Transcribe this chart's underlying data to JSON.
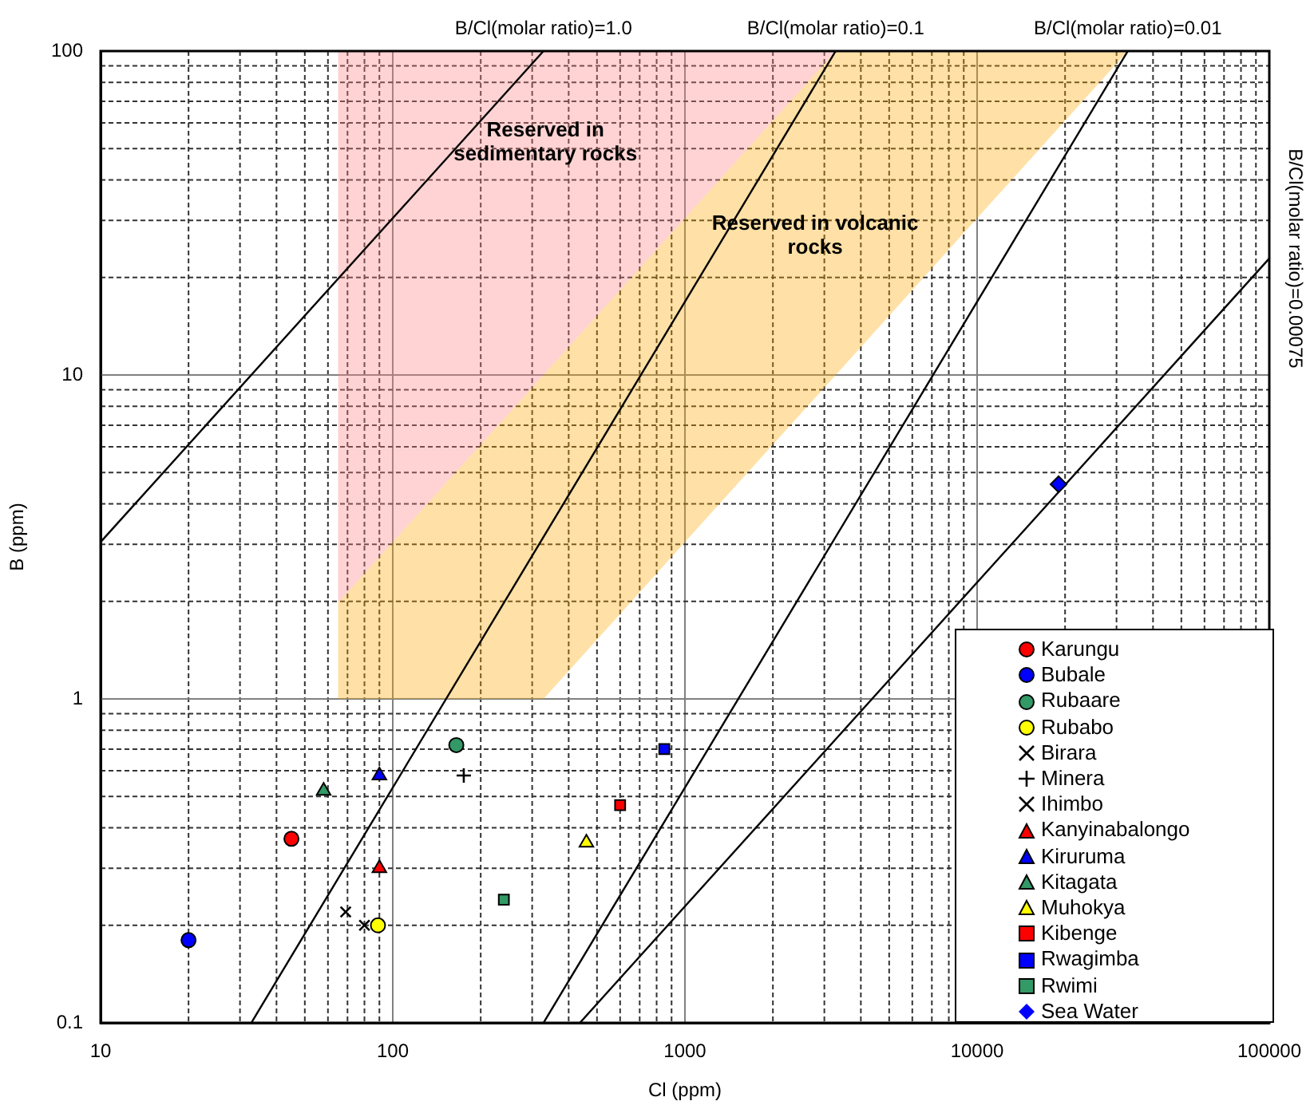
{
  "chart_data": {
    "type": "scatter",
    "xlabel": "Cl (ppm)",
    "ylabel": "B (ppm)",
    "log": "xy",
    "grid": true,
    "legend": "bottom right",
    "xlim": [
      10,
      100000
    ],
    "ylim": [
      0.1,
      100
    ],
    "xticks": [
      10,
      {
        "value": 20,
        "label": null
      },
      {
        "value": 30,
        "label": null
      },
      {
        "value": 40,
        "label": null
      },
      {
        "value": 50,
        "label": null
      },
      {
        "value": 60,
        "label": null
      },
      {
        "value": 70,
        "label": null
      },
      {
        "value": 80,
        "label": null
      },
      {
        "value": 90,
        "label": null
      },
      100,
      {
        "value": 200,
        "label": null
      },
      {
        "value": 300,
        "label": null
      },
      {
        "value": 400,
        "label": null
      },
      {
        "value": 500,
        "label": null
      },
      {
        "value": 600,
        "label": null
      },
      {
        "value": 700,
        "label": null
      },
      {
        "value": 800,
        "label": null
      },
      {
        "value": 900,
        "label": null
      },
      1000,
      {
        "value": 2000,
        "label": null
      },
      {
        "value": 3000,
        "label": null
      },
      {
        "value": 4000,
        "label": null
      },
      {
        "value": 5000,
        "label": null
      },
      {
        "value": 6000,
        "label": null
      },
      {
        "value": 7000,
        "label": null
      },
      {
        "value": 8000,
        "label": null
      },
      {
        "value": 9000,
        "label": null
      },
      10000,
      {
        "value": 20000,
        "label": null
      },
      {
        "value": 30000,
        "label": null
      },
      {
        "value": 40000,
        "label": null
      },
      {
        "value": 50000,
        "label": null
      },
      {
        "value": 60000,
        "label": null
      },
      {
        "value": 70000,
        "label": null
      },
      {
        "value": 80000,
        "label": null
      },
      {
        "value": 90000,
        "label": null
      },
      100000
    ],
    "yticks": [
      0.1,
      {
        "value": 0.2,
        "label": null
      },
      {
        "value": 0.3,
        "label": null
      },
      {
        "value": 0.4,
        "label": null
      },
      {
        "value": 0.5,
        "label": null
      },
      {
        "value": 0.6,
        "label": null
      },
      {
        "value": 0.7,
        "label": null
      },
      {
        "value": 0.8,
        "label": null
      },
      {
        "value": 0.9,
        "label": null
      },
      1,
      {
        "value": 2,
        "label": null
      },
      {
        "value": 3,
        "label": null
      },
      {
        "value": 4,
        "label": null
      },
      {
        "value": 5,
        "label": null
      },
      {
        "value": 6,
        "label": null
      },
      {
        "value": 7,
        "label": null
      },
      {
        "value": 8,
        "label": null
      },
      {
        "value": 9,
        "label": null
      },
      10,
      {
        "value": 20,
        "label": null
      },
      {
        "value": 30,
        "label": null
      },
      {
        "value": 40,
        "label": null
      },
      {
        "value": 50,
        "label": null
      },
      {
        "value": 60,
        "label": null
      },
      {
        "value": 70,
        "label": null
      },
      {
        "value": 80,
        "label": null
      },
      {
        "value": 90,
        "label": null
      },
      100
    ],
    "annotations": [
      "Reserved in\nsedimentary rocks",
      "Reserved in volcanic\nrocks"
    ],
    "series": [
      {
        "type": "area",
        "color": "#ff8080",
        "x": [
          65,
          65,
          3280
        ],
        "values": [
          1.98,
          100,
          100
        ]
      },
      {
        "type": "area",
        "color": "#ffa500",
        "x": [
          65,
          65,
          3280,
          32800,
          328
        ],
        "values": [
          1,
          1.98,
          100,
          100,
          1
        ]
      },
      {
        "type": "line",
        "name": "B/Cl(molar ratio)=1.0",
        "color": "#000000",
        "marker": "none",
        "x": [
          10,
          328
        ],
        "values": [
          3.05,
          100
        ]
      },
      {
        "type": "line",
        "name": "B/Cl(molar ratio)=0.1",
        "color": "#000000",
        "marker": "none",
        "x": [
          32.8,
          3280
        ],
        "values": [
          0.1,
          100
        ]
      },
      {
        "type": "line",
        "name": "B/Cl(molar ratio)=0.01",
        "color": "#000000",
        "marker": "none",
        "x": [
          328,
          32800
        ],
        "values": [
          0.1,
          100
        ]
      },
      {
        "type": "line",
        "name": "B/Cl(molar ratio)=0.00075",
        "color": "#000000",
        "marker": "none",
        "x": [
          437,
          100000
        ],
        "values": [
          0.1,
          22.9
        ]
      },
      {
        "name": "Karungu",
        "color": "#ff0000",
        "marker": "circle",
        "x": [
          45
        ],
        "values": [
          0.37
        ]
      },
      {
        "name": "Bubale",
        "color": "#0000ff",
        "marker": "circle",
        "x": [
          20
        ],
        "values": [
          0.18
        ]
      },
      {
        "name": "Rubaare",
        "color": "#339966",
        "marker": "circle",
        "x": [
          165
        ],
        "values": [
          0.72
        ]
      },
      {
        "name": "Rubabo",
        "color": "#ffff00",
        "marker": "circle",
        "x": [
          89
        ],
        "values": [
          0.2
        ]
      },
      {
        "name": "Birara",
        "color": "#000000",
        "marker": "x",
        "x": [
          80
        ],
        "values": [
          0.2
        ]
      },
      {
        "name": "Minera",
        "color": "#000000",
        "marker": "cross",
        "x": [
          175
        ],
        "values": [
          0.58
        ]
      },
      {
        "name": "Ihimbo",
        "color": "#000000",
        "marker": "x",
        "x": [
          69
        ],
        "values": [
          0.22
        ]
      },
      {
        "name": "Kanyinabalongo",
        "color": "#ff0000",
        "marker": "triangle",
        "x": [
          90
        ],
        "values": [
          0.3
        ]
      },
      {
        "name": "Kiruruma",
        "color": "#0000ff",
        "marker": "triangle",
        "x": [
          90
        ],
        "values": [
          0.58
        ]
      },
      {
        "name": "Kitagata",
        "color": "#339966",
        "marker": "triangle",
        "x": [
          58
        ],
        "values": [
          0.52
        ]
      },
      {
        "name": "Muhokya",
        "color": "#ffff00",
        "marker": "triangle",
        "x": [
          460
        ],
        "values": [
          0.36
        ]
      },
      {
        "name": "Kibenge",
        "color": "#ff0000",
        "marker": "square",
        "x": [
          600
        ],
        "values": [
          0.47
        ]
      },
      {
        "name": "Rwagimba",
        "color": "#0000ff",
        "marker": "square",
        "x": [
          850
        ],
        "values": [
          0.7
        ]
      },
      {
        "name": "Rwimi",
        "color": "#339966",
        "marker": "square",
        "x": [
          240
        ],
        "values": [
          0.24
        ]
      },
      {
        "name": "Sea Water",
        "color": "#0000ff",
        "marker": "diamond",
        "x": [
          19000
        ],
        "values": [
          4.6
        ]
      }
    ]
  }
}
